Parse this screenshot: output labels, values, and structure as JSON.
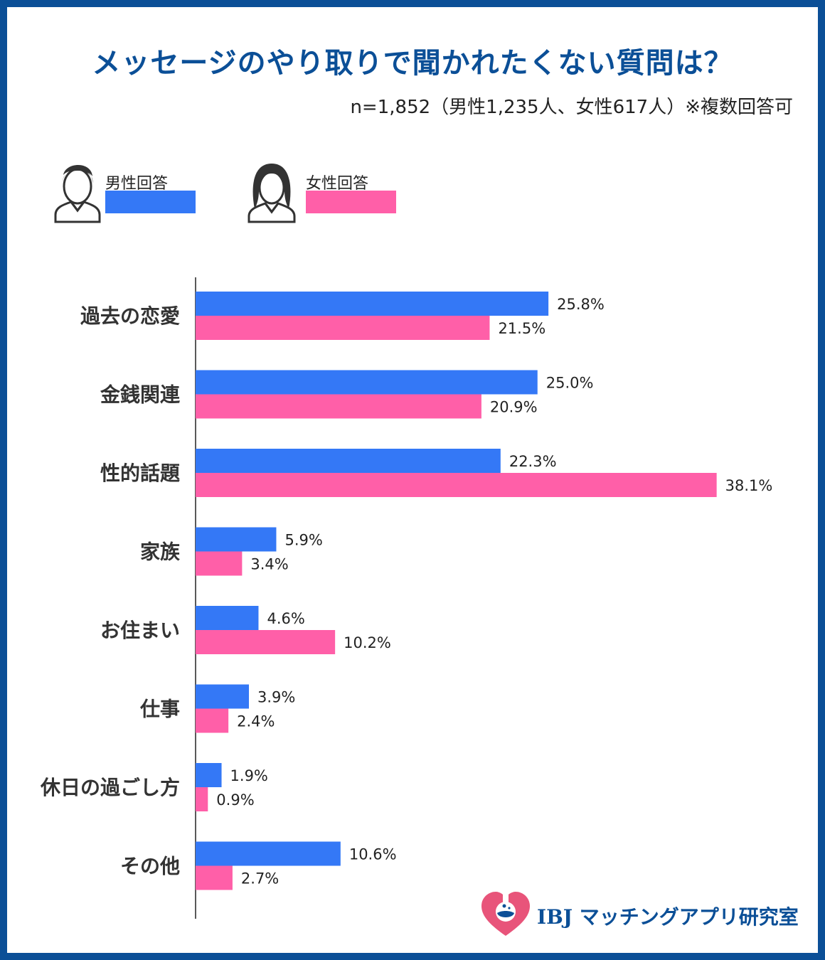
{
  "title": "メッセージのやり取りで聞かれたくない質問は？",
  "subtitle": "n=1,852（男性1,235人、女性617人）※複数回答可",
  "legend": {
    "male": {
      "label": "男性回答",
      "color": "#3478f6",
      "icon": "male-person-icon"
    },
    "female": {
      "label": "女性回答",
      "color": "#ff5fa8",
      "icon": "female-person-icon"
    }
  },
  "logo": {
    "text": "IBJ マッチングアプリ研究室",
    "icon": "heart-flask-icon"
  },
  "chart_data": {
    "type": "bar",
    "orientation": "horizontal",
    "categories": [
      "過去の恋愛",
      "金銭関連",
      "性的話題",
      "家族",
      "お住まい",
      "仕事",
      "休日の過ごし方",
      "その他"
    ],
    "series": [
      {
        "name": "男性回答",
        "color": "#3478f6",
        "values": [
          25.8,
          25.0,
          22.3,
          5.9,
          4.6,
          3.9,
          1.9,
          10.6
        ],
        "labels": [
          "25.8%",
          "25.0%",
          "22.3%",
          "5.9%",
          "4.6%",
          "3.9%",
          "1.9%",
          "10.6%"
        ]
      },
      {
        "name": "女性回答",
        "color": "#ff5fa8",
        "values": [
          21.5,
          20.9,
          38.1,
          3.4,
          10.2,
          2.4,
          0.9,
          2.7
        ],
        "labels": [
          "21.5%",
          "20.9%",
          "38.1%",
          "3.4%",
          "10.2%",
          "2.4%",
          "0.9%",
          "2.7%"
        ]
      }
    ],
    "grid": false,
    "legend_placement": "top-left"
  }
}
